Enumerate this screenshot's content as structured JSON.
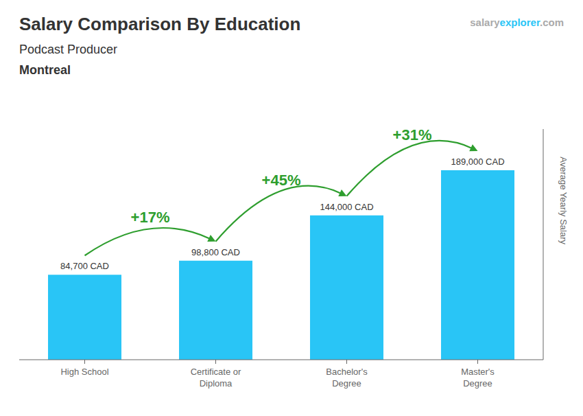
{
  "chart_data": {
    "type": "bar",
    "title": "Salary Comparison By Education",
    "subtitle": [
      "Podcast Producer",
      "Montreal"
    ],
    "y_label": "Average Yearly Salary",
    "categories": [
      "High School",
      "Certificate or\nDiploma",
      "Bachelor's\nDegree",
      "Master's\nDegree"
    ],
    "values": [
      84700,
      98800,
      144000,
      189000
    ],
    "value_labels": [
      "84,700 CAD",
      "98,800 CAD",
      "144,000 CAD",
      "189,000 CAD"
    ],
    "color": "#29c5f6",
    "ylim": [
      0,
      230000
    ],
    "yticks": [],
    "grid": false,
    "data_labels": true,
    "tick_labels": "x",
    "annotations": [
      {
        "text": "+17%",
        "from": 0,
        "to": 1,
        "color": "#2e9e2e"
      },
      {
        "text": "+45%",
        "from": 1,
        "to": 2,
        "color": "#2e9e2e"
      },
      {
        "text": "+31%",
        "from": 2,
        "to": 3,
        "color": "#2e9e2e"
      },
      {
        "text": "salary",
        "color": "#aaaaaa"
      },
      {
        "text": "explorer",
        "color": "#29c5f6"
      },
      {
        "text": ".com",
        "color": "#aaaaaa"
      }
    ]
  }
}
